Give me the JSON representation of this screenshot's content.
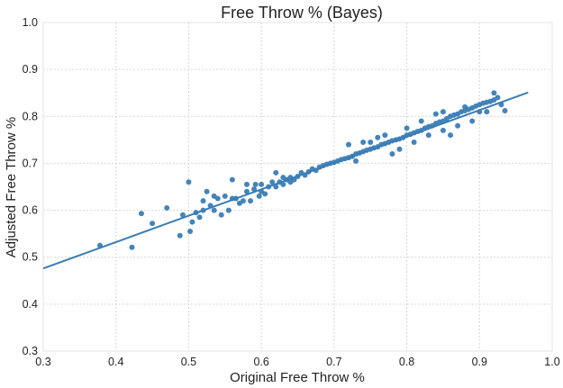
{
  "chart_data": {
    "type": "scatter",
    "title": "Free Throw % (Bayes)",
    "xlabel": "Original Free Throw %",
    "ylabel": "Adjusted Free Throw %",
    "xlim": [
      0.3,
      1.0
    ],
    "ylim": [
      0.3,
      1.0
    ],
    "xticks": [
      "0.3",
      "0.4",
      "0.5",
      "0.6",
      "0.7",
      "0.8",
      "0.9",
      "1.0"
    ],
    "yticks": [
      "0.3",
      "0.4",
      "0.5",
      "0.6",
      "0.7",
      "0.8",
      "0.9",
      "1.0"
    ],
    "grid": true,
    "color": "#3a7db5",
    "points": [
      [
        0.378,
        0.525
      ],
      [
        0.422,
        0.521
      ],
      [
        0.435,
        0.593
      ],
      [
        0.45,
        0.572
      ],
      [
        0.47,
        0.605
      ],
      [
        0.488,
        0.546
      ],
      [
        0.492,
        0.59
      ],
      [
        0.5,
        0.66
      ],
      [
        0.502,
        0.555
      ],
      [
        0.51,
        0.595
      ],
      [
        0.515,
        0.585
      ],
      [
        0.52,
        0.62
      ],
      [
        0.525,
        0.64
      ],
      [
        0.53,
        0.61
      ],
      [
        0.535,
        0.63
      ],
      [
        0.54,
        0.625
      ],
      [
        0.545,
        0.59
      ],
      [
        0.55,
        0.63
      ],
      [
        0.555,
        0.6
      ],
      [
        0.56,
        0.665
      ],
      [
        0.565,
        0.625
      ],
      [
        0.57,
        0.615
      ],
      [
        0.575,
        0.62
      ],
      [
        0.58,
        0.64
      ],
      [
        0.585,
        0.62
      ],
      [
        0.59,
        0.645
      ],
      [
        0.592,
        0.655
      ],
      [
        0.597,
        0.63
      ],
      [
        0.6,
        0.64
      ],
      [
        0.605,
        0.635
      ],
      [
        0.61,
        0.65
      ],
      [
        0.615,
        0.66
      ],
      [
        0.62,
        0.65
      ],
      [
        0.625,
        0.66
      ],
      [
        0.63,
        0.655
      ],
      [
        0.635,
        0.665
      ],
      [
        0.64,
        0.67
      ],
      [
        0.645,
        0.665
      ],
      [
        0.65,
        0.672
      ],
      [
        0.655,
        0.68
      ],
      [
        0.66,
        0.675
      ],
      [
        0.665,
        0.682
      ],
      [
        0.67,
        0.688
      ],
      [
        0.675,
        0.685
      ],
      [
        0.68,
        0.692
      ],
      [
        0.685,
        0.695
      ],
      [
        0.69,
        0.698
      ],
      [
        0.695,
        0.7
      ],
      [
        0.7,
        0.702
      ],
      [
        0.705,
        0.705
      ],
      [
        0.71,
        0.708
      ],
      [
        0.715,
        0.71
      ],
      [
        0.72,
        0.712
      ],
      [
        0.725,
        0.715
      ],
      [
        0.73,
        0.72
      ],
      [
        0.735,
        0.722
      ],
      [
        0.74,
        0.725
      ],
      [
        0.745,
        0.728
      ],
      [
        0.75,
        0.73
      ],
      [
        0.755,
        0.733
      ],
      [
        0.76,
        0.735
      ],
      [
        0.765,
        0.74
      ],
      [
        0.77,
        0.742
      ],
      [
        0.775,
        0.745
      ],
      [
        0.78,
        0.748
      ],
      [
        0.785,
        0.75
      ],
      [
        0.79,
        0.752
      ],
      [
        0.795,
        0.755
      ],
      [
        0.8,
        0.76
      ],
      [
        0.805,
        0.762
      ],
      [
        0.81,
        0.765
      ],
      [
        0.815,
        0.768
      ],
      [
        0.82,
        0.77
      ],
      [
        0.825,
        0.775
      ],
      [
        0.83,
        0.778
      ],
      [
        0.835,
        0.78
      ],
      [
        0.84,
        0.785
      ],
      [
        0.845,
        0.788
      ],
      [
        0.85,
        0.79
      ],
      [
        0.855,
        0.795
      ],
      [
        0.86,
        0.8
      ],
      [
        0.865,
        0.803
      ],
      [
        0.87,
        0.805
      ],
      [
        0.875,
        0.81
      ],
      [
        0.88,
        0.812
      ],
      [
        0.885,
        0.815
      ],
      [
        0.89,
        0.818
      ],
      [
        0.895,
        0.822
      ],
      [
        0.9,
        0.825
      ],
      [
        0.905,
        0.828
      ],
      [
        0.91,
        0.83
      ],
      [
        0.915,
        0.832
      ],
      [
        0.92,
        0.835
      ],
      [
        0.925,
        0.84
      ],
      [
        0.93,
        0.825
      ],
      [
        0.935,
        0.812
      ],
      [
        0.72,
        0.74
      ],
      [
        0.73,
        0.705
      ],
      [
        0.78,
        0.72
      ],
      [
        0.79,
        0.73
      ],
      [
        0.81,
        0.745
      ],
      [
        0.83,
        0.76
      ],
      [
        0.85,
        0.77
      ],
      [
        0.87,
        0.78
      ],
      [
        0.89,
        0.79
      ],
      [
        0.86,
        0.76
      ],
      [
        0.76,
        0.755
      ],
      [
        0.74,
        0.745
      ],
      [
        0.82,
        0.79
      ],
      [
        0.84,
        0.805
      ],
      [
        0.88,
        0.82
      ],
      [
        0.9,
        0.81
      ],
      [
        0.92,
        0.85
      ],
      [
        0.91,
        0.81
      ],
      [
        0.85,
        0.81
      ],
      [
        0.8,
        0.775
      ],
      [
        0.77,
        0.76
      ],
      [
        0.75,
        0.745
      ],
      [
        0.63,
        0.67
      ],
      [
        0.64,
        0.66
      ],
      [
        0.62,
        0.68
      ],
      [
        0.6,
        0.655
      ],
      [
        0.58,
        0.655
      ],
      [
        0.56,
        0.625
      ],
      [
        0.535,
        0.6
      ],
      [
        0.52,
        0.6
      ],
      [
        0.505,
        0.575
      ]
    ],
    "fit_line": {
      "x": [
        0.3,
        0.967
      ],
      "y": [
        0.476,
        0.851
      ]
    }
  }
}
